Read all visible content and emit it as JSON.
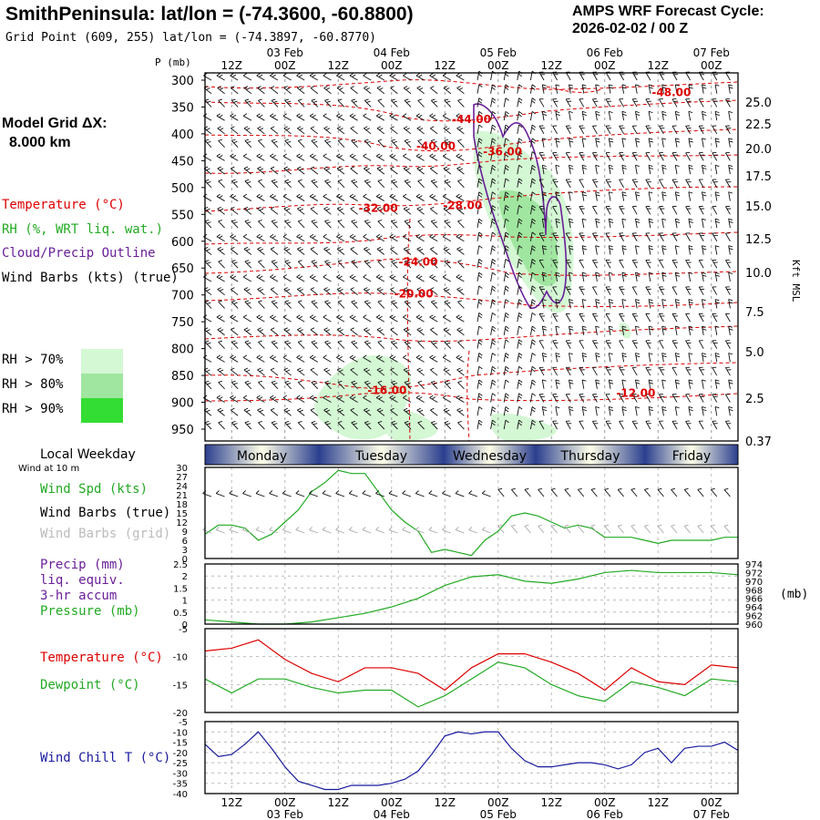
{
  "header": {
    "title": "SmithPeninsula:  lat/lon = (-74.3600, -60.8800)",
    "grid_point": "Grid Point (609, 255) lat/lon = (-74.3897, -60.8770)",
    "cycle_line1": "AMPS WRF Forecast Cycle:",
    "cycle_line2": "2026-02-02 / 00  Z"
  },
  "left_panel": {
    "model_grid_label": "Model Grid ΔX:",
    "model_grid_value": "8.000 km",
    "temperature_label": "Temperature (°C)",
    "rh_label": "RH (%, WRT liq. wat.)",
    "cloud_label": "Cloud/Precip Outline",
    "wind_label": "Wind Barbs (kts) (true)",
    "rh70": "RH > 70%",
    "rh80": "RH > 80%",
    "rh90": "RH > 90%",
    "local_weekday": "Local Weekday",
    "wind_at_10m": "Wind at 10 m",
    "wind_spd": "Wind Spd (kts)",
    "wind_barbs_true": "Wind Barbs (true)",
    "wind_barbs_grid": "Wind Barbs (grid)",
    "precip1": "Precip (mm)",
    "precip2": "liq. equiv.",
    "precip3": "3-hr accum",
    "pressure": "Pressure (mb)",
    "temp2": "Temperature (°C)",
    "dewpoint": "Dewpoint (°C)",
    "windchill": "Wind Chill T (°C)",
    "p_unit": "P (mb)",
    "kft_msl": "Kft MSL",
    "pressure_unit": "(mb)"
  },
  "colors": {
    "temperature": "#dd0000",
    "rh": "#22aa22",
    "cloud": "#6a1f99",
    "grid_barbs": "#aaaaaa",
    "windchill": "#1a1aa0",
    "rh70": "#d4f7d4",
    "rh80": "#a0e6a0",
    "rh90": "#33dd33"
  },
  "chart_data": [
    {
      "type": "heatmap",
      "name": "cross-section",
      "title": "Temperature / RH / Wind Barbs time-height section",
      "ylabel": "P (mb)",
      "y2label": "Kft MSL",
      "pressure_levels": [
        300,
        350,
        400,
        450,
        500,
        550,
        600,
        650,
        700,
        750,
        800,
        850,
        900,
        950
      ],
      "kft_ticks": [
        "25.0",
        "22.5",
        "20.0",
        "17.5",
        "15.0",
        "12.5",
        "10.0",
        "7.5",
        "5.0",
        "2.5",
        "0.37"
      ],
      "top_dates": [
        "03 Feb",
        "04 Feb",
        "05 Feb",
        "06 Feb",
        "07 Feb"
      ],
      "time_ticks": [
        "12Z",
        "00Z",
        "12Z",
        "00Z",
        "12Z",
        "00Z",
        "12Z",
        "00Z",
        "12Z",
        "00Z"
      ],
      "temperature_labels": [
        {
          "text": "-48.00",
          "hour": 105,
          "p": 330
        },
        {
          "text": "-44.00",
          "hour": 60,
          "p": 380
        },
        {
          "text": "-40.00",
          "hour": 52,
          "p": 430
        },
        {
          "text": "-36.00",
          "hour": 67,
          "p": 440
        },
        {
          "text": "-32.00",
          "hour": 39,
          "p": 545
        },
        {
          "text": "-28.00",
          "hour": 58,
          "p": 540
        },
        {
          "text": "-24.00",
          "hour": 48,
          "p": 645
        },
        {
          "text": "-20.00",
          "hour": 47,
          "p": 705
        },
        {
          "text": "-16.00",
          "hour": 41,
          "p": 885
        },
        {
          "text": "-12.00",
          "hour": 97,
          "p": 890
        }
      ]
    },
    {
      "type": "line",
      "name": "wind-speed",
      "ylabel": "Wind Spd (kts)",
      "ylim": [
        0,
        30
      ],
      "yticks": [
        0,
        3,
        6,
        9,
        12,
        15,
        18,
        21,
        24,
        27,
        30
      ],
      "x_hours": [
        0,
        3,
        6,
        9,
        12,
        15,
        18,
        21,
        24,
        27,
        30,
        33,
        36,
        39,
        42,
        45,
        48,
        51,
        54,
        57,
        60,
        63,
        66,
        69,
        72,
        75,
        78,
        81,
        84,
        87,
        90,
        93,
        96,
        99,
        102,
        105,
        108,
        111,
        114,
        117,
        120
      ],
      "series": [
        {
          "name": "Wind Spd",
          "values": [
            8,
            11,
            11,
            10,
            6,
            8,
            12,
            16,
            22,
            25,
            29,
            28,
            28,
            22,
            16,
            12,
            9,
            2,
            3,
            2,
            1,
            6,
            9,
            14,
            15,
            14,
            12,
            10,
            11,
            10,
            7,
            7,
            7,
            6,
            5,
            6,
            6,
            6,
            6,
            7,
            7
          ]
        }
      ]
    },
    {
      "type": "line",
      "name": "precip-pressure",
      "ylabel": "Precip (mm)",
      "ylim": [
        0,
        2.5
      ],
      "yticks": [
        0.0,
        0.5,
        1.0,
        1.5,
        2.0,
        2.5
      ],
      "y2label": "Pressure (mb)",
      "y2lim": [
        960,
        974
      ],
      "y2ticks": [
        960,
        962,
        964,
        966,
        968,
        970,
        972,
        974
      ],
      "x_hours": [
        0,
        6,
        12,
        18,
        24,
        30,
        36,
        42,
        48,
        54,
        60,
        66,
        72,
        78,
        84,
        90,
        96,
        102,
        108,
        114,
        120
      ],
      "series": [
        {
          "name": "Pressure",
          "axis": "right",
          "values": [
            961,
            960.5,
            960,
            960,
            960.5,
            961.5,
            962.5,
            964,
            966,
            969,
            971,
            971.5,
            970,
            969.5,
            970.5,
            972,
            972.5,
            972,
            972,
            972,
            971.5
          ]
        }
      ]
    },
    {
      "type": "line",
      "name": "temperature-dewpoint",
      "ylim": [
        -20,
        -5
      ],
      "yticks": [
        -5,
        -10,
        -15,
        -20
      ],
      "x_hours": [
        0,
        6,
        12,
        18,
        24,
        30,
        36,
        42,
        48,
        54,
        60,
        66,
        72,
        78,
        84,
        90,
        96,
        102,
        108,
        114,
        120
      ],
      "series": [
        {
          "name": "Temperature",
          "color": "red",
          "values": [
            -9,
            -8.5,
            -7,
            -10.5,
            -13,
            -14.5,
            -12,
            -12,
            -13,
            -16,
            -12,
            -9.5,
            -9.5,
            -11,
            -13,
            -16,
            -12,
            -14.5,
            -15,
            -11.5,
            -12
          ]
        },
        {
          "name": "Dewpoint",
          "color": "green",
          "values": [
            -14,
            -16.5,
            -14,
            -14,
            -15.5,
            -16.5,
            -16,
            -16,
            -19,
            -17,
            -14,
            -11,
            -12,
            -15,
            -17,
            -18,
            -14.5,
            -15.5,
            -17,
            -14,
            -14.5
          ]
        }
      ]
    },
    {
      "type": "line",
      "name": "wind-chill",
      "ylabel": "Wind Chill T (°C)",
      "ylim": [
        -40,
        -5
      ],
      "yticks": [
        -5,
        -10,
        -15,
        -20,
        -25,
        -30,
        -35,
        -40
      ],
      "x_hours": [
        0,
        3,
        6,
        9,
        12,
        15,
        18,
        21,
        24,
        27,
        30,
        33,
        36,
        39,
        42,
        45,
        48,
        51,
        54,
        57,
        60,
        63,
        66,
        69,
        72,
        75,
        78,
        81,
        84,
        87,
        90,
        93,
        96,
        99,
        102,
        105,
        108,
        111,
        114,
        117,
        120
      ],
      "series": [
        {
          "name": "Wind Chill",
          "values": [
            -16,
            -22,
            -21,
            -16,
            -10,
            -18,
            -27,
            -34,
            -36,
            -38,
            -38,
            -36,
            -36,
            -36,
            -35,
            -33,
            -29,
            -21,
            -12,
            -10,
            -11,
            -10,
            -10,
            -18,
            -24,
            -27,
            -27,
            -26,
            -25,
            -25,
            -26,
            -28,
            -26,
            -20,
            -18,
            -25,
            -18,
            -17,
            -17,
            -15,
            -19
          ]
        }
      ]
    }
  ],
  "weekdays": [
    "Monday",
    "Tuesday",
    "Wednesday",
    "Thursday",
    "Friday"
  ]
}
